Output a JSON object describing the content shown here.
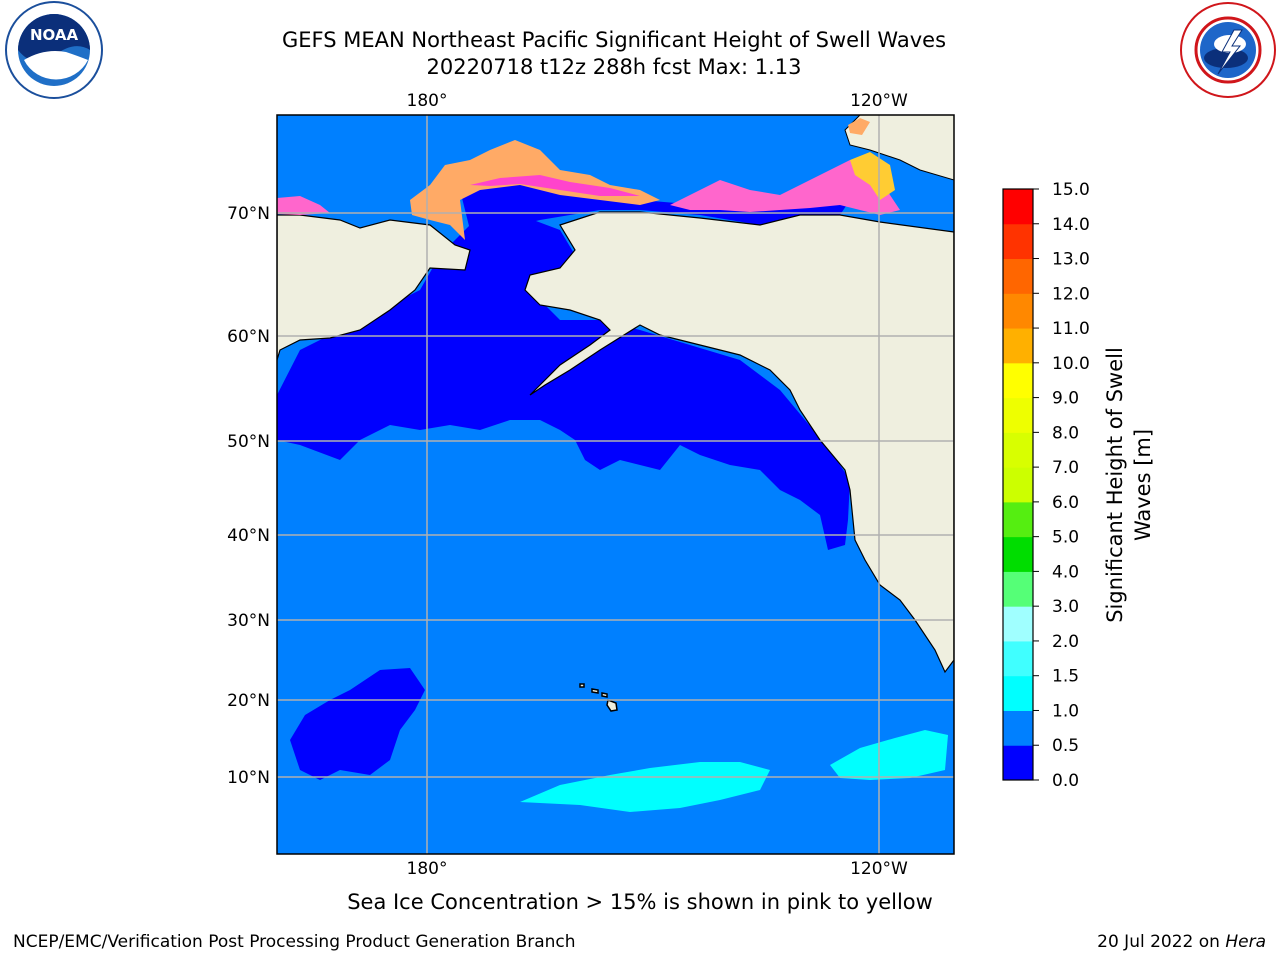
{
  "header": {
    "title_line1": "GEFS MEAN Northeast Pacific Significant Height of Swell Waves",
    "title_line2": "20220718 t12z 288h fcst   Max: 1.13"
  },
  "logos": {
    "left": {
      "name": "NOAA",
      "text": "NOAA",
      "ring_text": "NATIONAL OCEANIC AND ATMOSPHERIC ADMINISTRATION · U.S. DEPARTMENT OF COMMERCE"
    },
    "right": {
      "name": "National Weather Service",
      "ring_text": "NATIONAL WEATHER SERVICE"
    }
  },
  "map": {
    "lon_labels_top": [
      "180°",
      "120°W"
    ],
    "lon_labels_bottom": [
      "180°",
      "120°W"
    ],
    "lat_labels": [
      "70°N",
      "60°N",
      "50°N",
      "40°N",
      "30°N",
      "20°N",
      "10°N"
    ],
    "colors": {
      "land": "#efefdf",
      "grid": "#b0b0b0",
      "ice": [
        "#ff00ff",
        "#ff66cc",
        "#ffaa66",
        "#ffcc33"
      ]
    }
  },
  "chart_data": {
    "type": "heatmap",
    "title": "GEFS MEAN Northeast Pacific Significant Height of Swell Waves",
    "subtitle": "20220718 t12z 288h fcst   Max: 1.13",
    "colorbar": {
      "label": "Significant Height of Swell Waves [m]",
      "label_lines": [
        "Significant Height of Swell",
        "Waves [m]"
      ],
      "range": [
        0.0,
        15.0
      ],
      "ticks": [
        "0.0",
        "0.5",
        "1.0",
        "1.5",
        "2.0",
        "3.0",
        "4.0",
        "5.0",
        "6.0",
        "7.0",
        "8.0",
        "9.0",
        "10.0",
        "11.0",
        "12.0",
        "13.0",
        "14.0",
        "15.0"
      ],
      "colors": [
        "#0000ff",
        "#0080ff",
        "#00ffff",
        "#40ffff",
        "#a0ffff",
        "#55ff77",
        "#00dd00",
        "#55ee11",
        "#ccff00",
        "#d8ff00",
        "#eeff00",
        "#ffff00",
        "#ffb000",
        "#ff8800",
        "#ff6600",
        "#ff3300",
        "#ff0000"
      ]
    },
    "max_value": 1.13
  },
  "caption": "Sea Ice Concentration > 15% is shown in pink to yellow",
  "footer": {
    "left": "NCEP/EMC/Verification Post Processing Product Generation Branch",
    "date": "20 Jul 2022 on ",
    "machine": "Hera"
  }
}
